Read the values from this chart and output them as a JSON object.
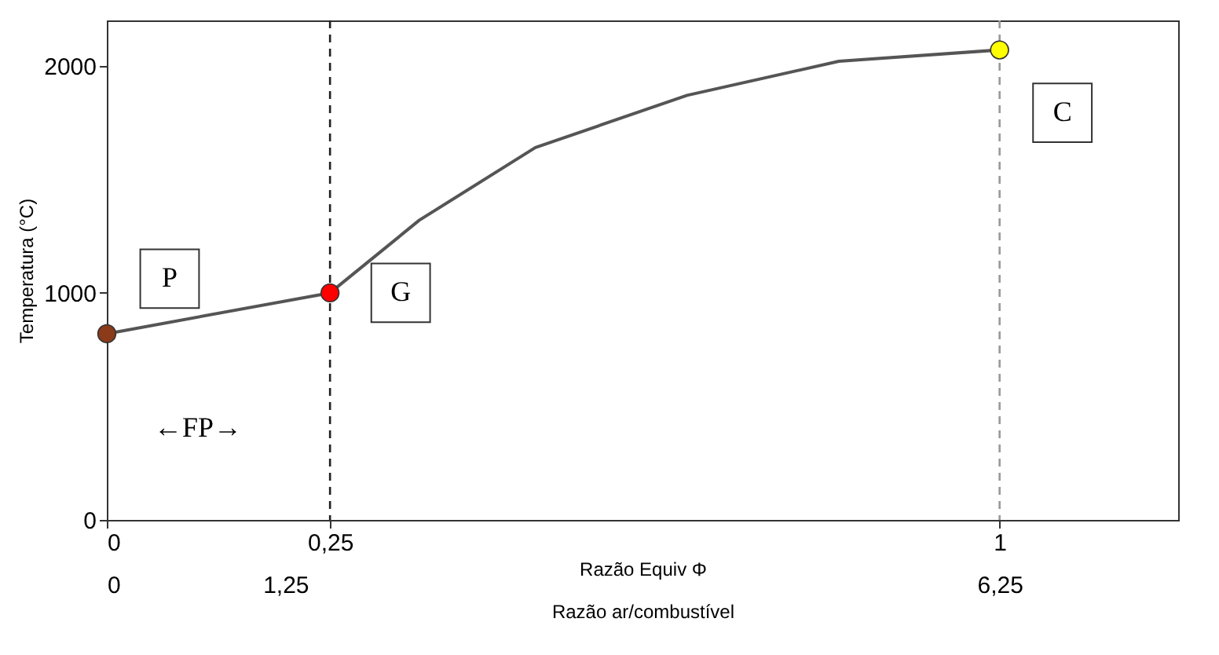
{
  "chart_data": {
    "type": "line",
    "ylabel": "Temperatura (°C)",
    "xlabel": "Razão Equiv  Φ",
    "x2label": "Razão ar/combustível",
    "xlim": [
      0,
      1.2
    ],
    "xticks": [
      {
        "value": 0,
        "label": "0"
      },
      {
        "value": 0.25,
        "label": "0,25"
      },
      {
        "value": 1,
        "label": "1"
      }
    ],
    "x2lim": [
      0,
      7.5
    ],
    "x2ticks": [
      {
        "value": 0,
        "label": "0"
      },
      {
        "value": 1.25,
        "label": "1,25"
      },
      {
        "value": 6.25,
        "label": "6,25"
      }
    ],
    "ylim": [
      0,
      2200
    ],
    "yticks": [
      0,
      1000,
      2000
    ],
    "grid": false,
    "series": [
      {
        "color": "#555555",
        "x": [
          0,
          0.25,
          0.35,
          0.48,
          0.65,
          0.82,
          1
        ],
        "values": [
          820,
          1000,
          1320,
          1640,
          1870,
          2020,
          2070
        ]
      },
      {
        "type": "scatter",
        "marker": "circle",
        "colors": [
          "#8b3a1a",
          "#ff0000",
          "#ffff00"
        ],
        "x": [
          0,
          0.25,
          1
        ],
        "values": [
          820,
          1000,
          2070
        ]
      }
    ],
    "ref_lines": [
      {
        "axis": "x",
        "value": 0.25,
        "color": "#222222",
        "line_style": "dashed"
      },
      {
        "axis": "x",
        "value": 1,
        "color": "#999999",
        "line_style": "dashed"
      }
    ],
    "annotations": [
      {
        "text": "P",
        "x": 0,
        "y": 820
      },
      {
        "text": "G",
        "x": 0.25,
        "y": 1000
      },
      {
        "text": "C",
        "x": 1,
        "y": 2070
      },
      "←FP→"
    ]
  }
}
